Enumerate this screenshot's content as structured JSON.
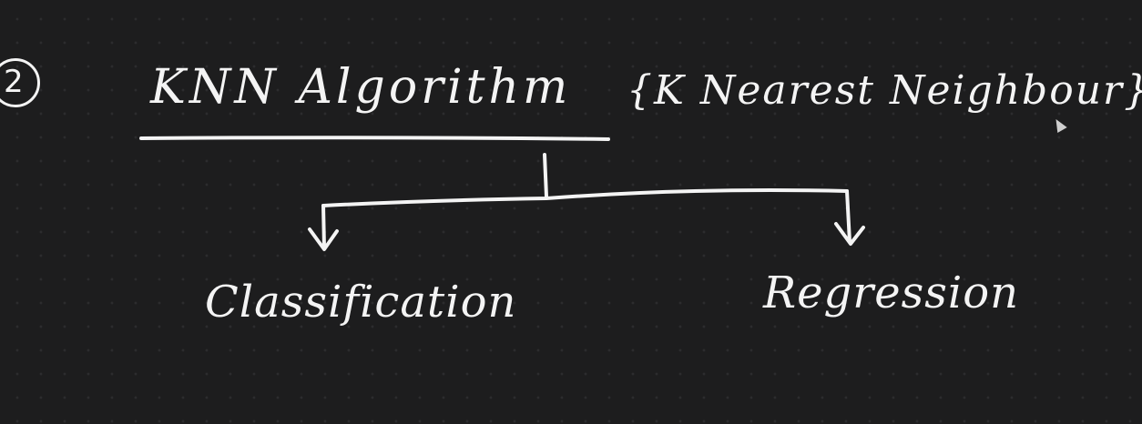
{
  "diagram": {
    "number": "2",
    "title": "KNN Algorithm",
    "subtitle": "{K Nearest Neighbour}",
    "branches": [
      {
        "label": "Classification"
      },
      {
        "label": "Regression"
      }
    ]
  },
  "colors": {
    "background": "#1d1d1e",
    "ink": "#f4f4f4",
    "grid_dot": "#2c2c2e"
  }
}
